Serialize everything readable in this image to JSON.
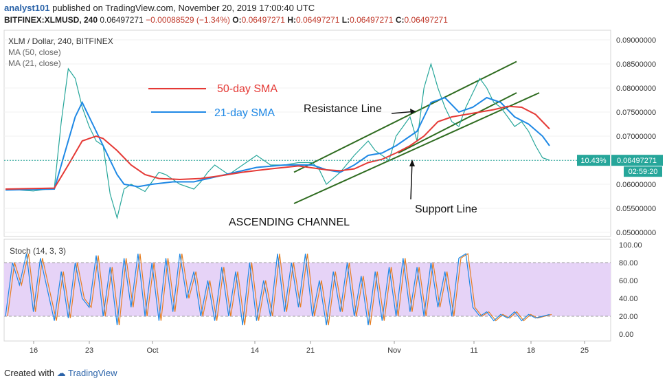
{
  "header": {
    "user": "analyst101",
    "published": "published on TradingView.com, November 20, 2019 17:00:40 UTC",
    "symbol": "BITFINEX:XLMUSD, 240",
    "last": "0.06497271",
    "change": "−0.00088529 (−1.34%)",
    "o_label": "O:",
    "o": "0.06497271",
    "h_label": "H:",
    "h": "0.06497271",
    "l_label": "L:",
    "l": "0.06497271",
    "c_label": "C:",
    "c": "0.06497271"
  },
  "chart_data": [
    {
      "type": "line",
      "title": "XLM / Dollar, 240, BITFINEX",
      "indicators": [
        "MA (50, close)",
        "MA (21, close)"
      ],
      "x_tick_labels": [
        "16",
        "23",
        "Oct",
        "14",
        "21",
        "Nov",
        "11",
        "18",
        "25"
      ],
      "y_tick_labels": [
        "0.09000000",
        "0.08500000",
        "0.08000000",
        "0.07500000",
        "0.07000000",
        "0.06500000",
        "0.06000000",
        "0.05500000",
        "0.05000000"
      ],
      "ylim": [
        0.05,
        0.09
      ],
      "price_badge": "0.06497271",
      "percent_badge": "10.43%",
      "countdown_badge": "02:59:20",
      "legend": [
        {
          "name": "50-day SMA",
          "color": "#e53935"
        },
        {
          "name": "21-day SMA",
          "color": "#1e88e5"
        }
      ],
      "annotations": [
        "Resistance Line",
        "Support Line",
        "ASCENDING CHANNEL"
      ],
      "channel": {
        "resistance": [
          {
            "date": "Oct 22",
            "value": 0.0625
          },
          {
            "date": "Nov 16",
            "value": 0.0855
          }
        ],
        "support": [
          {
            "date": "Oct 22",
            "value": 0.056
          },
          {
            "date": "Nov 17",
            "value": 0.079
          }
        ],
        "inner": [
          {
            "date": "Nov 4",
            "value": 0.0665
          },
          {
            "date": "Nov 16",
            "value": 0.079
          }
        ]
      },
      "series": [
        {
          "name": "XLM/USD close",
          "color": "#26a69a",
          "points": [
            [
              0,
              0.059
            ],
            [
              4,
              0.0586
            ],
            [
              7,
              0.0592
            ],
            [
              8,
              0.073
            ],
            [
              9,
              0.084
            ],
            [
              10,
              0.082
            ],
            [
              11,
              0.076
            ],
            [
              12,
              0.072
            ],
            [
              13,
              0.069
            ],
            [
              14,
              0.068
            ],
            [
              15,
              0.058
            ],
            [
              16,
              0.053
            ],
            [
              17,
              0.059
            ],
            [
              18,
              0.06
            ],
            [
              20,
              0.0585
            ],
            [
              21,
              0.0605
            ],
            [
              22,
              0.0625
            ],
            [
              23,
              0.062
            ],
            [
              25,
              0.06
            ],
            [
              27,
              0.059
            ],
            [
              28,
              0.0605
            ],
            [
              29,
              0.0625
            ],
            [
              30,
              0.064
            ],
            [
              32,
              0.062
            ],
            [
              34,
              0.064
            ],
            [
              36,
              0.066
            ],
            [
              37,
              0.065
            ],
            [
              38,
              0.064
            ],
            [
              40,
              0.064
            ],
            [
              42,
              0.0645
            ],
            [
              44,
              0.0645
            ],
            [
              45,
              0.063
            ],
            [
              46,
              0.06
            ],
            [
              48,
              0.0625
            ],
            [
              50,
              0.066
            ],
            [
              52,
              0.069
            ],
            [
              53,
              0.067
            ],
            [
              54,
              0.066
            ],
            [
              55,
              0.065
            ],
            [
              56,
              0.07
            ],
            [
              57,
              0.072
            ],
            [
              58,
              0.074
            ],
            [
              59,
              0.069
            ],
            [
              60,
              0.08
            ],
            [
              61,
              0.085
            ],
            [
              62,
              0.08
            ],
            [
              63,
              0.076
            ],
            [
              64,
              0.073
            ],
            [
              65,
              0.072
            ],
            [
              66,
              0.076
            ],
            [
              67,
              0.079
            ],
            [
              68,
              0.082
            ],
            [
              69,
              0.08
            ],
            [
              70,
              0.077
            ],
            [
              71,
              0.076
            ],
            [
              72,
              0.074
            ],
            [
              73,
              0.072
            ],
            [
              74,
              0.073
            ],
            [
              75,
              0.071
            ],
            [
              76,
              0.068
            ],
            [
              77,
              0.0655
            ],
            [
              78,
              0.065
            ]
          ]
        },
        {
          "name": "MA (21, close)",
          "color": "#1e88e5",
          "points": [
            [
              0,
              0.0588
            ],
            [
              7,
              0.059
            ],
            [
              8,
              0.064
            ],
            [
              10,
              0.074
            ],
            [
              11,
              0.077
            ],
            [
              12,
              0.074
            ],
            [
              13,
              0.071
            ],
            [
              14,
              0.068
            ],
            [
              15,
              0.065
            ],
            [
              16,
              0.062
            ],
            [
              17,
              0.06
            ],
            [
              19,
              0.0595
            ],
            [
              21,
              0.06
            ],
            [
              24,
              0.0605
            ],
            [
              27,
              0.0605
            ],
            [
              30,
              0.0615
            ],
            [
              33,
              0.0625
            ],
            [
              36,
              0.0635
            ],
            [
              40,
              0.064
            ],
            [
              44,
              0.064
            ],
            [
              46,
              0.063
            ],
            [
              48,
              0.0625
            ],
            [
              50,
              0.064
            ],
            [
              52,
              0.066
            ],
            [
              54,
              0.0665
            ],
            [
              56,
              0.068
            ],
            [
              58,
              0.07
            ],
            [
              59,
              0.071
            ],
            [
              61,
              0.077
            ],
            [
              63,
              0.078
            ],
            [
              65,
              0.075
            ],
            [
              67,
              0.076
            ],
            [
              69,
              0.078
            ],
            [
              71,
              0.077
            ],
            [
              73,
              0.074
            ],
            [
              75,
              0.0725
            ],
            [
              77,
              0.07
            ],
            [
              78,
              0.068
            ]
          ]
        },
        {
          "name": "MA (50, close)",
          "color": "#e53935",
          "points": [
            [
              0,
              0.059
            ],
            [
              7,
              0.0592
            ],
            [
              9,
              0.064
            ],
            [
              11,
              0.069
            ],
            [
              13,
              0.07
            ],
            [
              14,
              0.0695
            ],
            [
              16,
              0.067
            ],
            [
              18,
              0.064
            ],
            [
              20,
              0.062
            ],
            [
              22,
              0.0612
            ],
            [
              25,
              0.061
            ],
            [
              28,
              0.0612
            ],
            [
              31,
              0.0618
            ],
            [
              34,
              0.0625
            ],
            [
              38,
              0.0632
            ],
            [
              42,
              0.0638
            ],
            [
              46,
              0.063
            ],
            [
              48,
              0.0628
            ],
            [
              50,
              0.0632
            ],
            [
              52,
              0.0645
            ],
            [
              54,
              0.0652
            ],
            [
              56,
              0.0665
            ],
            [
              58,
              0.068
            ],
            [
              60,
              0.07
            ],
            [
              62,
              0.073
            ],
            [
              64,
              0.074
            ],
            [
              66,
              0.0745
            ],
            [
              68,
              0.075
            ],
            [
              70,
              0.0755
            ],
            [
              72,
              0.0762
            ],
            [
              74,
              0.076
            ],
            [
              76,
              0.0745
            ],
            [
              78,
              0.0715
            ]
          ]
        }
      ]
    },
    {
      "type": "line",
      "title": "Stoch (14, 3, 3)",
      "x_tick_labels": [
        "16",
        "23",
        "Oct",
        "14",
        "21",
        "Nov",
        "11",
        "18",
        "25"
      ],
      "y_tick_labels": [
        "100.00",
        "80.00",
        "60.00",
        "40.00",
        "20.00",
        "0.00"
      ],
      "ylim": [
        0,
        100
      ],
      "bands": [
        20,
        80
      ],
      "series": [
        {
          "name": "%K",
          "color": "#1e88e5",
          "points": [
            [
              0,
              20
            ],
            [
              1,
              80
            ],
            [
              2,
              55
            ],
            [
              3,
              90
            ],
            [
              4,
              25
            ],
            [
              5,
              85
            ],
            [
              6,
              50
            ],
            [
              7,
              15
            ],
            [
              8,
              70
            ],
            [
              9,
              18
            ],
            [
              10,
              80
            ],
            [
              11,
              40
            ],
            [
              12,
              30
            ],
            [
              13,
              88
            ],
            [
              14,
              20
            ],
            [
              15,
              75
            ],
            [
              16,
              10
            ],
            [
              17,
              85
            ],
            [
              18,
              30
            ],
            [
              19,
              90
            ],
            [
              20,
              20
            ],
            [
              21,
              80
            ],
            [
              22,
              15
            ],
            [
              23,
              85
            ],
            [
              24,
              25
            ],
            [
              25,
              90
            ],
            [
              26,
              40
            ],
            [
              27,
              70
            ],
            [
              28,
              20
            ],
            [
              29,
              60
            ],
            [
              30,
              15
            ],
            [
              31,
              75
            ],
            [
              32,
              20
            ],
            [
              33,
              70
            ],
            [
              34,
              10
            ],
            [
              35,
              80
            ],
            [
              36,
              15
            ],
            [
              37,
              60
            ],
            [
              38,
              20
            ],
            [
              39,
              90
            ],
            [
              40,
              25
            ],
            [
              41,
              80
            ],
            [
              42,
              30
            ],
            [
              43,
              90
            ],
            [
              44,
              20
            ],
            [
              45,
              60
            ],
            [
              46,
              10
            ],
            [
              47,
              70
            ],
            [
              48,
              25
            ],
            [
              49,
              80
            ],
            [
              50,
              20
            ],
            [
              51,
              65
            ],
            [
              52,
              10
            ],
            [
              53,
              70
            ],
            [
              54,
              15
            ],
            [
              55,
              75
            ],
            [
              56,
              20
            ],
            [
              57,
              85
            ],
            [
              58,
              25
            ],
            [
              59,
              75
            ],
            [
              60,
              20
            ],
            [
              61,
              80
            ],
            [
              62,
              30
            ],
            [
              63,
              70
            ],
            [
              64,
              20
            ],
            [
              65,
              85
            ],
            [
              66,
              90
            ],
            [
              67,
              30
            ],
            [
              68,
              20
            ],
            [
              69,
              25
            ],
            [
              70,
              15
            ],
            [
              71,
              22
            ],
            [
              72,
              18
            ],
            [
              73,
              25
            ],
            [
              74,
              15
            ],
            [
              75,
              22
            ],
            [
              76,
              18
            ],
            [
              77,
              20
            ],
            [
              78,
              22
            ]
          ]
        }
      ]
    }
  ]
}
